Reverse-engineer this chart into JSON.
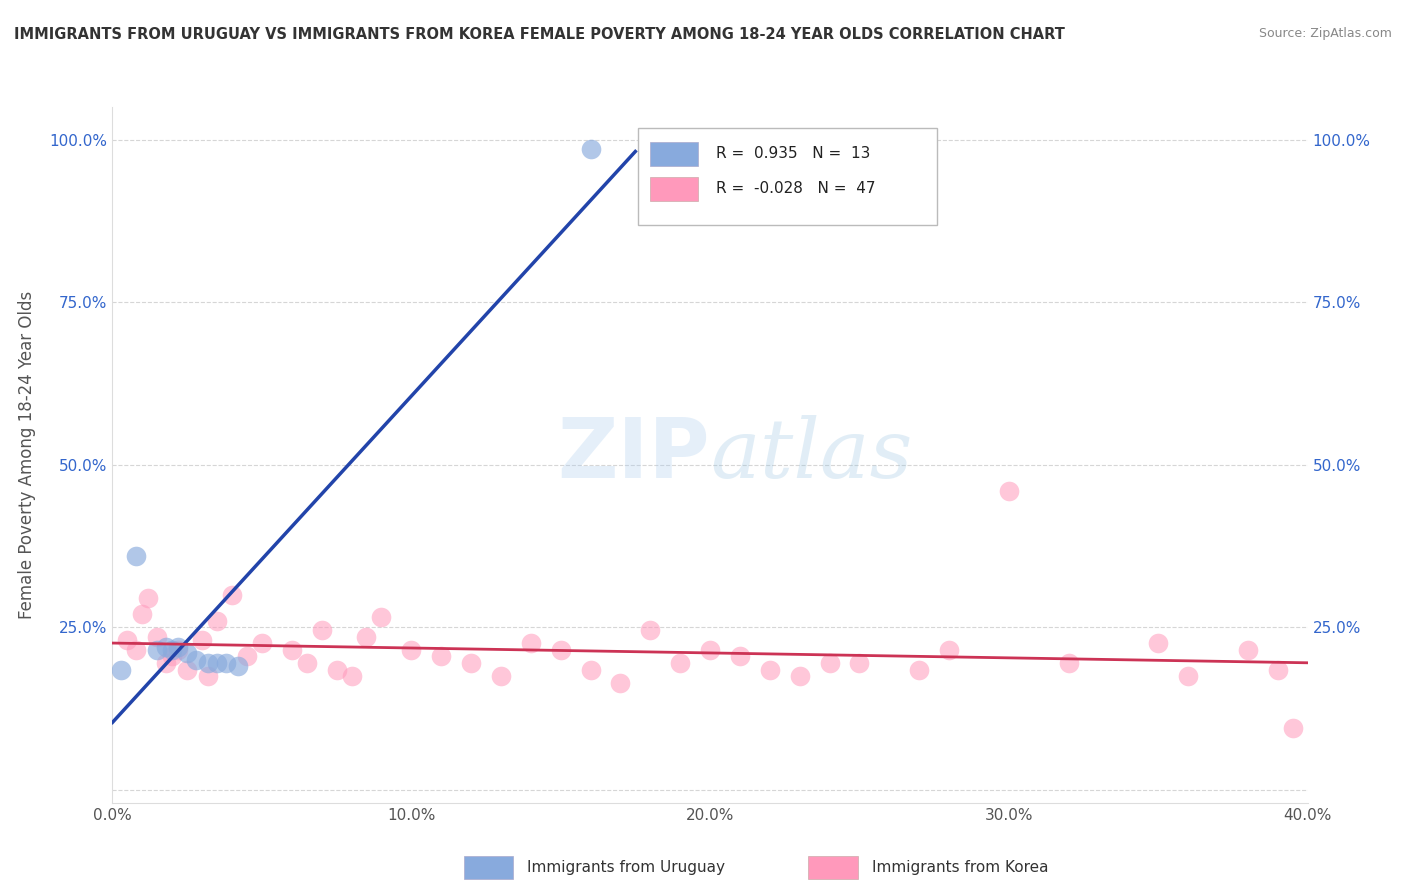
{
  "title": "IMMIGRANTS FROM URUGUAY VS IMMIGRANTS FROM KOREA FEMALE POVERTY AMONG 18-24 YEAR OLDS CORRELATION CHART",
  "source": "Source: ZipAtlas.com",
  "ylabel": "Female Poverty Among 18-24 Year Olds",
  "xlim": [
    0.0,
    0.4
  ],
  "ylim": [
    -0.02,
    1.05
  ],
  "xticks": [
    0.0,
    0.1,
    0.2,
    0.3,
    0.4
  ],
  "xtick_labels": [
    "0.0%",
    "10.0%",
    "20.0%",
    "30.0%",
    "40.0%"
  ],
  "yticks": [
    0.0,
    0.25,
    0.5,
    0.75,
    1.0
  ],
  "ytick_labels": [
    "",
    "25.0%",
    "50.0%",
    "75.0%",
    "100.0%"
  ],
  "watermark_zip": "ZIP",
  "watermark_atlas": "atlas",
  "uruguay_color": "#88AADD",
  "korea_color": "#FF99BB",
  "uruguay_R": 0.935,
  "uruguay_N": 13,
  "korea_R": -0.028,
  "korea_N": 47,
  "legend_label_uruguay": "Immigrants from Uruguay",
  "legend_label_korea": "Immigrants from Korea",
  "uruguay_scatter_x": [
    0.003,
    0.008,
    0.015,
    0.018,
    0.02,
    0.022,
    0.025,
    0.028,
    0.032,
    0.035,
    0.038,
    0.042,
    0.16
  ],
  "uruguay_scatter_y": [
    0.185,
    0.36,
    0.215,
    0.22,
    0.215,
    0.22,
    0.21,
    0.2,
    0.195,
    0.195,
    0.195,
    0.19,
    0.985
  ],
  "korea_scatter_x": [
    0.005,
    0.008,
    0.01,
    0.012,
    0.015,
    0.018,
    0.02,
    0.022,
    0.025,
    0.03,
    0.032,
    0.035,
    0.04,
    0.045,
    0.05,
    0.06,
    0.065,
    0.07,
    0.075,
    0.08,
    0.085,
    0.09,
    0.1,
    0.11,
    0.12,
    0.13,
    0.14,
    0.15,
    0.16,
    0.17,
    0.18,
    0.19,
    0.2,
    0.21,
    0.22,
    0.23,
    0.24,
    0.25,
    0.27,
    0.28,
    0.3,
    0.32,
    0.35,
    0.36,
    0.38,
    0.39,
    0.395
  ],
  "korea_scatter_y": [
    0.23,
    0.215,
    0.27,
    0.295,
    0.235,
    0.195,
    0.205,
    0.215,
    0.185,
    0.23,
    0.175,
    0.26,
    0.3,
    0.205,
    0.225,
    0.215,
    0.195,
    0.245,
    0.185,
    0.175,
    0.235,
    0.265,
    0.215,
    0.205,
    0.195,
    0.175,
    0.225,
    0.215,
    0.185,
    0.165,
    0.245,
    0.195,
    0.215,
    0.205,
    0.185,
    0.175,
    0.195,
    0.195,
    0.185,
    0.215,
    0.46,
    0.195,
    0.225,
    0.175,
    0.215,
    0.185,
    0.095
  ],
  "blue_line_color": "#2244AA",
  "pink_line_color": "#CC3355",
  "background_color": "#FFFFFF",
  "grid_color": "#CCCCCC",
  "r_value_color": "#3366CC",
  "title_color": "#333333"
}
